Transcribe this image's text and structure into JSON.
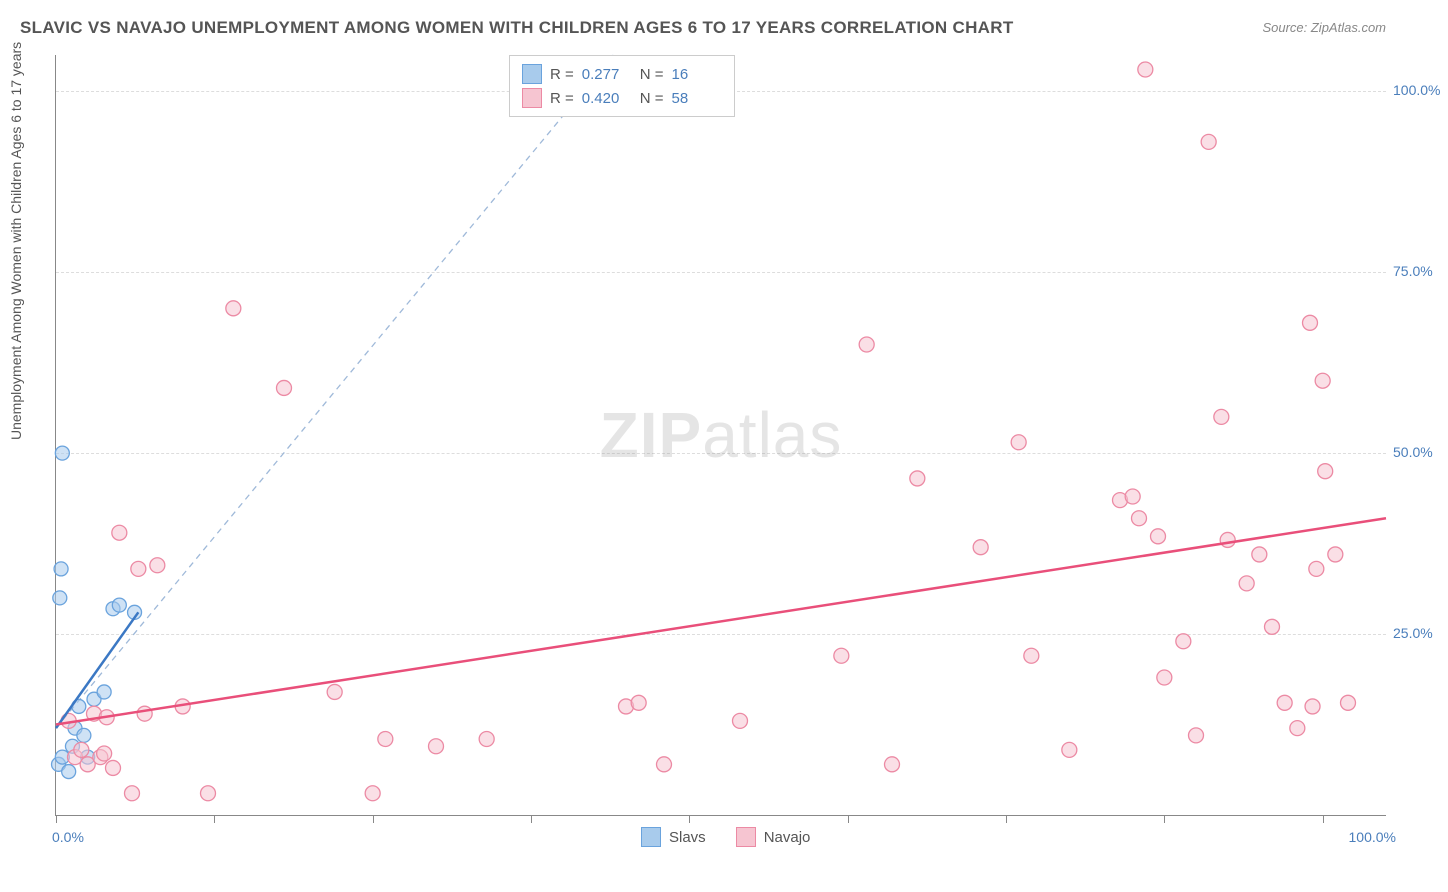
{
  "header": {
    "title": "SLAVIC VS NAVAJO UNEMPLOYMENT AMONG WOMEN WITH CHILDREN AGES 6 TO 17 YEARS CORRELATION CHART",
    "source": "Source: ZipAtlas.com"
  },
  "y_axis_label": "Unemployment Among Women with Children Ages 6 to 17 years",
  "watermark_zip": "ZIP",
  "watermark_atlas": "atlas",
  "chart": {
    "type": "scatter",
    "xlim": [
      0,
      105
    ],
    "ylim": [
      0,
      105
    ],
    "grid_y": [
      25,
      50,
      75,
      100
    ],
    "grid_color": "#dddddd",
    "tick_x_positions": [
      0,
      12.5,
      25,
      37.5,
      50,
      62.5,
      75,
      87.5,
      100
    ],
    "x_tick_labels": [
      {
        "pos": 0,
        "text": "0.0%"
      },
      {
        "pos": 100,
        "text": "100.0%"
      }
    ],
    "y_tick_labels": [
      {
        "pos": 25,
        "text": "25.0%"
      },
      {
        "pos": 50,
        "text": "50.0%"
      },
      {
        "pos": 75,
        "text": "75.0%"
      },
      {
        "pos": 100,
        "text": "100.0%"
      }
    ],
    "series": [
      {
        "name": "Slavs",
        "color_fill": "#a8cbec",
        "color_stroke": "#6aa3dd",
        "marker_radius": 7,
        "trend": {
          "x1": 0,
          "y1": 12,
          "x2": 6.5,
          "y2": 28,
          "color": "#3b78c4",
          "width": 2.5
        },
        "guide": {
          "x1": 0,
          "y1": 12,
          "x2": 44,
          "y2": 105,
          "color": "#9fb9d9",
          "dash": "6,5",
          "width": 1.3
        },
        "points": [
          [
            0.2,
            7
          ],
          [
            0.5,
            8
          ],
          [
            1,
            6
          ],
          [
            1.3,
            9.5
          ],
          [
            1.5,
            12
          ],
          [
            1.8,
            15
          ],
          [
            0.3,
            30
          ],
          [
            0.4,
            34
          ],
          [
            0.5,
            50
          ],
          [
            2.2,
            11
          ],
          [
            2.5,
            8
          ],
          [
            3,
            16
          ],
          [
            3.8,
            17
          ],
          [
            4.5,
            28.5
          ],
          [
            5,
            29
          ],
          [
            6.2,
            28
          ]
        ]
      },
      {
        "name": "Navajo",
        "color_fill": "#f6c5d1",
        "color_stroke": "#ec8aa4",
        "marker_radius": 7.5,
        "trend": {
          "x1": 0,
          "y1": 12.5,
          "x2": 105,
          "y2": 41,
          "color": "#e94f7a",
          "width": 2.5
        },
        "points": [
          [
            1,
            13
          ],
          [
            1.5,
            8
          ],
          [
            2,
            9
          ],
          [
            2.5,
            7
          ],
          [
            3,
            14
          ],
          [
            3.5,
            8
          ],
          [
            3.8,
            8.5
          ],
          [
            4,
            13.5
          ],
          [
            4.5,
            6.5
          ],
          [
            5,
            39
          ],
          [
            6,
            3
          ],
          [
            6.5,
            34
          ],
          [
            7,
            14
          ],
          [
            8,
            34.5
          ],
          [
            10,
            15
          ],
          [
            12,
            3
          ],
          [
            14,
            70
          ],
          [
            18,
            59
          ],
          [
            22,
            17
          ],
          [
            25,
            3
          ],
          [
            26,
            10.5
          ],
          [
            30,
            9.5
          ],
          [
            34,
            10.5
          ],
          [
            45,
            15
          ],
          [
            46,
            15.5
          ],
          [
            48,
            7
          ],
          [
            54,
            13
          ],
          [
            62,
            22
          ],
          [
            64,
            65
          ],
          [
            66,
            7
          ],
          [
            68,
            46.5
          ],
          [
            73,
            37
          ],
          [
            76,
            51.5
          ],
          [
            77,
            22
          ],
          [
            80,
            9
          ],
          [
            84,
            43.5
          ],
          [
            85,
            44
          ],
          [
            85.5,
            41
          ],
          [
            86,
            103
          ],
          [
            87,
            38.5
          ],
          [
            87.5,
            19
          ],
          [
            89,
            24
          ],
          [
            90,
            11
          ],
          [
            91,
            93
          ],
          [
            92,
            55
          ],
          [
            92.5,
            38
          ],
          [
            94,
            32
          ],
          [
            95,
            36
          ],
          [
            96,
            26
          ],
          [
            97,
            15.5
          ],
          [
            98,
            12
          ],
          [
            99,
            68
          ],
          [
            99.2,
            15
          ],
          [
            99.5,
            34
          ],
          [
            100,
            60
          ],
          [
            100.2,
            47.5
          ],
          [
            101,
            36
          ],
          [
            102,
            15.5
          ]
        ]
      }
    ]
  },
  "legend_top": {
    "rows": [
      {
        "swatch_fill": "#a8cbec",
        "swatch_stroke": "#6aa3dd",
        "r_label": "R  =",
        "r_val": "0.277",
        "n_label": "N  =",
        "n_val": "16"
      },
      {
        "swatch_fill": "#f6c5d1",
        "swatch_stroke": "#ec8aa4",
        "r_label": "R  =",
        "r_val": "0.420",
        "n_label": "N  =",
        "n_val": "58"
      }
    ]
  },
  "legend_bottom": {
    "items": [
      {
        "swatch_fill": "#a8cbec",
        "swatch_stroke": "#6aa3dd",
        "label": "Slavs"
      },
      {
        "swatch_fill": "#f6c5d1",
        "swatch_stroke": "#ec8aa4",
        "label": "Navajo"
      }
    ]
  }
}
